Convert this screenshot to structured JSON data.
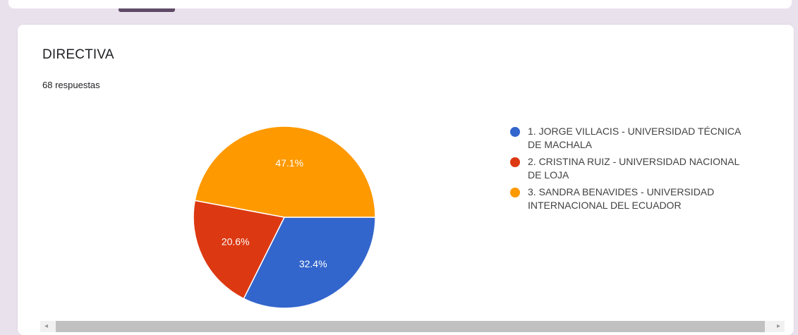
{
  "card": {
    "title": "DIRECTIVA",
    "responses": "68 respuestas"
  },
  "chart_data": {
    "type": "pie",
    "title": "DIRECTIVA",
    "legend_position": "right",
    "series": [
      {
        "name": "1. JORGE VILLACIS - UNIVERSIDAD TÉCNICA DE MACHALA",
        "value": 32.4,
        "label": "32.4%",
        "color": "#3366cc"
      },
      {
        "name": "2. CRISTINA RUIZ - UNIVERSIDAD NACIONAL DE LOJA",
        "value": 20.6,
        "label": "20.6%",
        "color": "#dc3912"
      },
      {
        "name": "3. SANDRA BENAVIDES - UNIVERSIDAD INTERNACIONAL DEL ECUADOR",
        "value": 47.1,
        "label": "47.1%",
        "color": "#ff9900"
      }
    ]
  },
  "scrollbar": {
    "left_arrow_icon": "arrow-left-icon",
    "right_arrow_icon": "arrow-right-icon"
  }
}
